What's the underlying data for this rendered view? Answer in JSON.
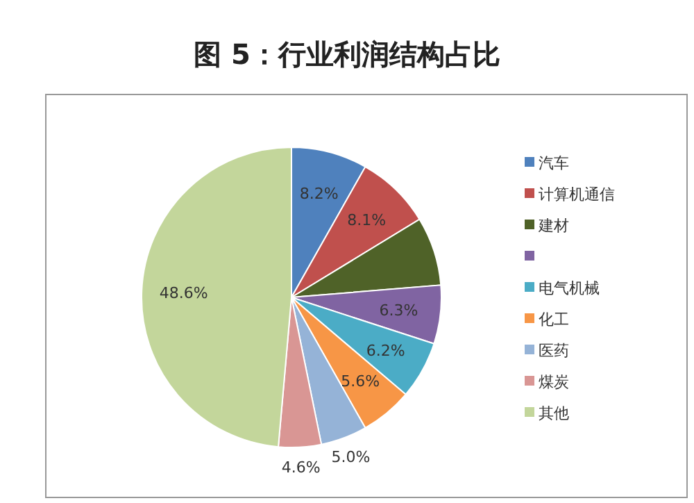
{
  "chart_data": {
    "type": "pie",
    "title": "图 5：行业利润结构占比",
    "categories": [
      "汽车",
      "计算机通信",
      "建材",
      null,
      "电气机械",
      "化工",
      "医药",
      "煤炭",
      "其他"
    ],
    "values": [
      8.2,
      8.1,
      7.4,
      6.3,
      6.2,
      5.6,
      5.0,
      4.6,
      48.6
    ],
    "value_labels": [
      "8.2%",
      "8.1%",
      null,
      "6.3%",
      "6.2%",
      "5.6%",
      "5.0%",
      "4.6%",
      "48.6%"
    ],
    "colors": [
      "#4f81bd",
      "#c0504d",
      "#4f6228",
      "#8064a2",
      "#4bacc6",
      "#f79646",
      "#95b3d7",
      "#d99694",
      "#c3d69b"
    ],
    "legend": "right"
  }
}
